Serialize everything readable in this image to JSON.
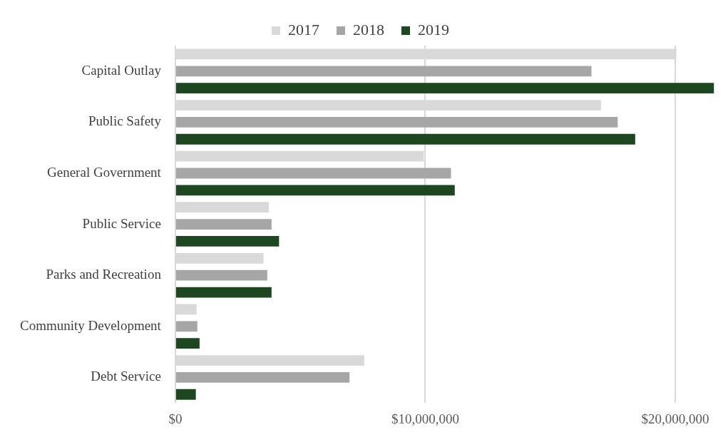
{
  "chart_data": {
    "type": "bar",
    "orientation": "horizontal",
    "categories": [
      "Capital Outlay",
      "Public Safety",
      "General Government",
      "Public Service",
      "Parks and Recreation",
      "Community Development",
      "Debt Service"
    ],
    "series": [
      {
        "name": "2017",
        "color": "#d9d9d9",
        "values": [
          20050000,
          17030000,
          9940000,
          3740000,
          3530000,
          850000,
          7560000
        ]
      },
      {
        "name": "2018",
        "color": "#a6a6a6",
        "values": [
          16650000,
          17700000,
          11030000,
          3850000,
          3680000,
          880000,
          6970000
        ]
      },
      {
        "name": "2019",
        "color": "#1e4620",
        "values": [
          21550000,
          18400000,
          11180000,
          4150000,
          3850000,
          970000,
          820000
        ]
      }
    ],
    "xlim": [
      0,
      21600000
    ],
    "xticks": [
      {
        "value": 0,
        "label": "$0"
      },
      {
        "value": 10000000,
        "label": "$10,000,000"
      },
      {
        "value": 20000000,
        "label": "$20,000,000"
      }
    ],
    "grid": "x",
    "legend": "top"
  }
}
